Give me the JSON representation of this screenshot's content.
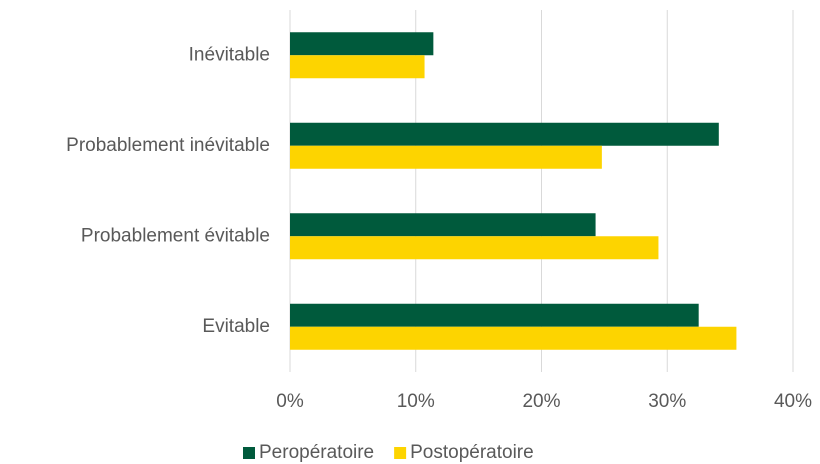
{
  "chart_data": {
    "type": "barh",
    "categories": [
      "Inévitable",
      "Probablement inévitable",
      "Probablement évitable",
      "Evitable"
    ],
    "series": [
      {
        "name": "Peropératoire",
        "color": "#005a3c",
        "values": [
          11.4,
          34.1,
          24.3,
          32.5
        ]
      },
      {
        "name": "Postopératoire",
        "color": "#fdd400",
        "values": [
          10.7,
          24.8,
          29.3,
          35.5
        ]
      }
    ],
    "xlim": [
      0,
      40
    ],
    "xticks": [
      {
        "value": 0,
        "label": "0%"
      },
      {
        "value": 10,
        "label": "10%"
      },
      {
        "value": 20,
        "label": "20%"
      },
      {
        "value": 30,
        "label": "30%"
      },
      {
        "value": 40,
        "label": "40%"
      }
    ],
    "grid": true,
    "legend": "bottom"
  }
}
